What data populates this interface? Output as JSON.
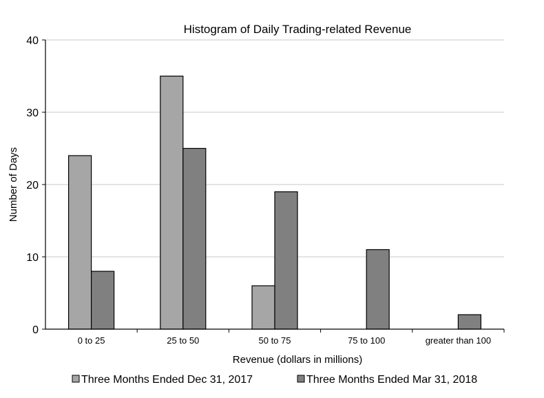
{
  "chart_data": {
    "type": "bar",
    "title": "Histogram of Daily Trading-related Revenue",
    "xlabel": "Revenue (dollars in millions)",
    "ylabel": "Number of Days",
    "categories": [
      "0 to 25",
      "25 to 50",
      "50 to 75",
      "75 to 100",
      "greater than 100"
    ],
    "series": [
      {
        "name": "Three Months Ended Dec 31, 2017",
        "values": [
          24,
          35,
          6,
          0,
          0
        ],
        "color": "#a6a6a6"
      },
      {
        "name": "Three Months Ended Mar 31, 2018",
        "values": [
          8,
          25,
          19,
          11,
          2
        ],
        "color": "#808080"
      }
    ],
    "ylim": [
      0,
      40
    ],
    "yticks": [
      0,
      10,
      20,
      30,
      40
    ],
    "grid": true,
    "legend": "bottom"
  }
}
